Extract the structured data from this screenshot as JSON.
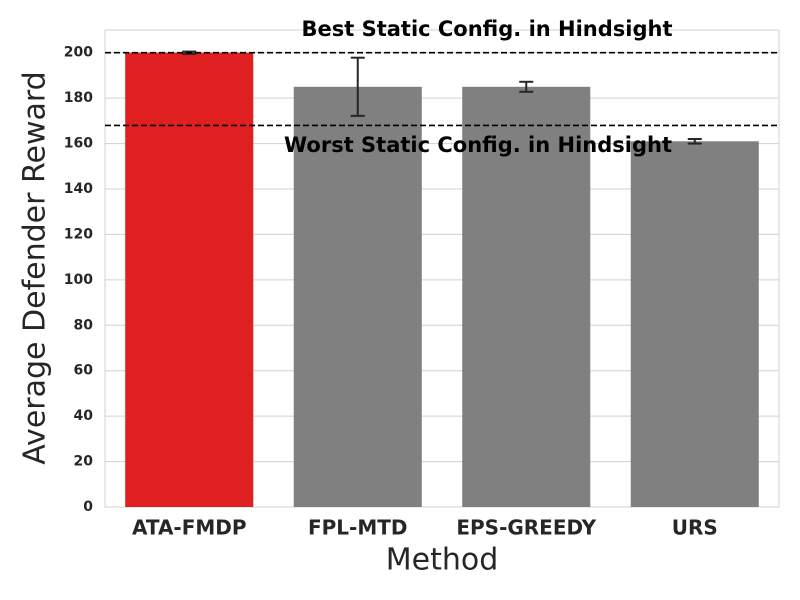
{
  "chart_data": {
    "type": "bar",
    "x_label": "Method",
    "y_label": "Average Defender Reward",
    "categories": [
      "ATA-FMDP",
      "FPL-MTD",
      "EPS-GREEDY",
      "URS"
    ],
    "values": [
      200,
      185,
      185,
      161
    ],
    "errors": [
      0.5,
      12.8,
      2.2,
      1
    ],
    "colors": [
      "#e02020",
      "#808080",
      "#808080",
      "#808080"
    ],
    "ylim": [
      0,
      210
    ],
    "yticks": [
      0,
      20,
      40,
      60,
      80,
      100,
      120,
      140,
      160,
      180,
      200
    ],
    "grid": true,
    "hlines": [
      {
        "value": 200,
        "label": "Best Static Config. in Hindsight"
      },
      {
        "value": 168,
        "label": "Worst Static Config. in Hindsight"
      }
    ]
  }
}
